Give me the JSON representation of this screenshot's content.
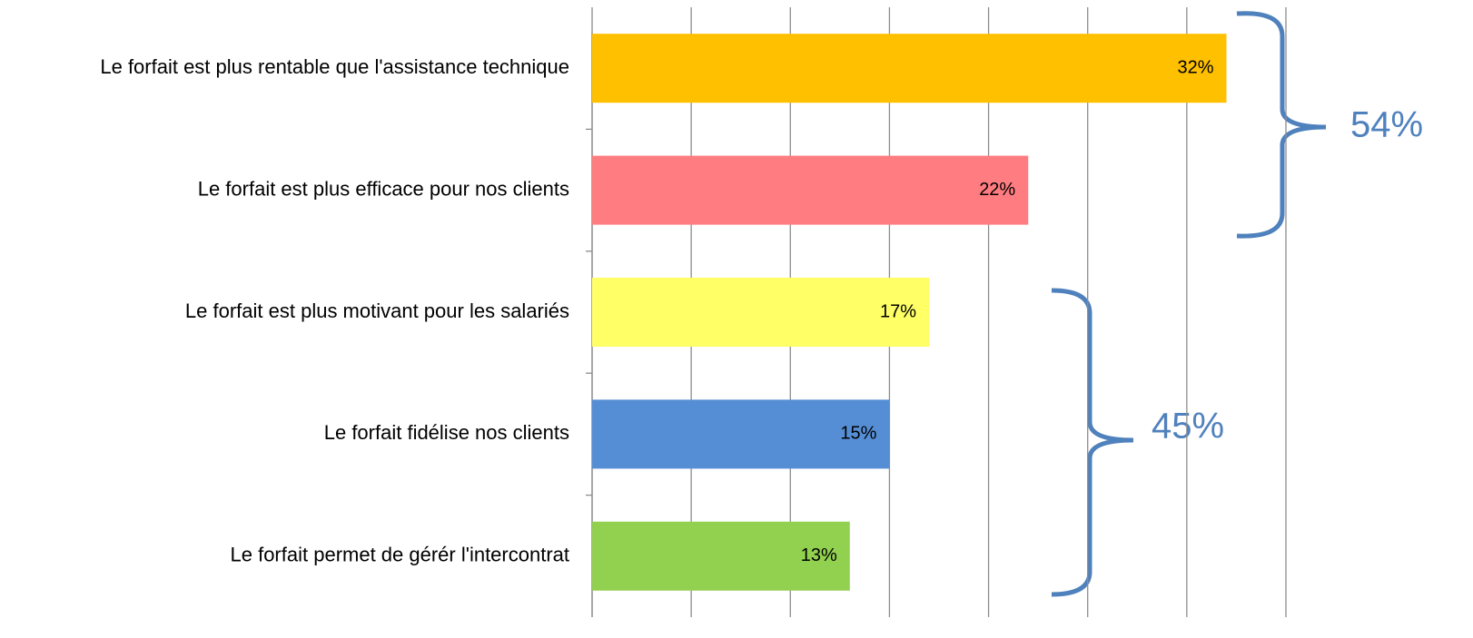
{
  "chart_data": {
    "type": "bar",
    "orientation": "horizontal",
    "categories": [
      "Le forfait est plus rentable que l'assistance technique",
      "Le forfait est plus efficace pour nos clients",
      "Le forfait est plus motivant pour les salariés",
      "Le forfait fidélise nos clients",
      "Le forfait permet de gérér l'intercontrat"
    ],
    "values": [
      32,
      22,
      17,
      15,
      13
    ],
    "value_labels": [
      "32%",
      "22%",
      "17%",
      "15%",
      "13%"
    ],
    "colors": [
      "#ffc000",
      "#ff7c80",
      "#ffff66",
      "#558ed5",
      "#92d050"
    ],
    "xlim": [
      0,
      35
    ],
    "xticks": [
      0,
      5,
      10,
      15,
      20,
      25,
      30,
      35
    ],
    "grid": true,
    "annotations": [
      "54%",
      "45%"
    ]
  }
}
